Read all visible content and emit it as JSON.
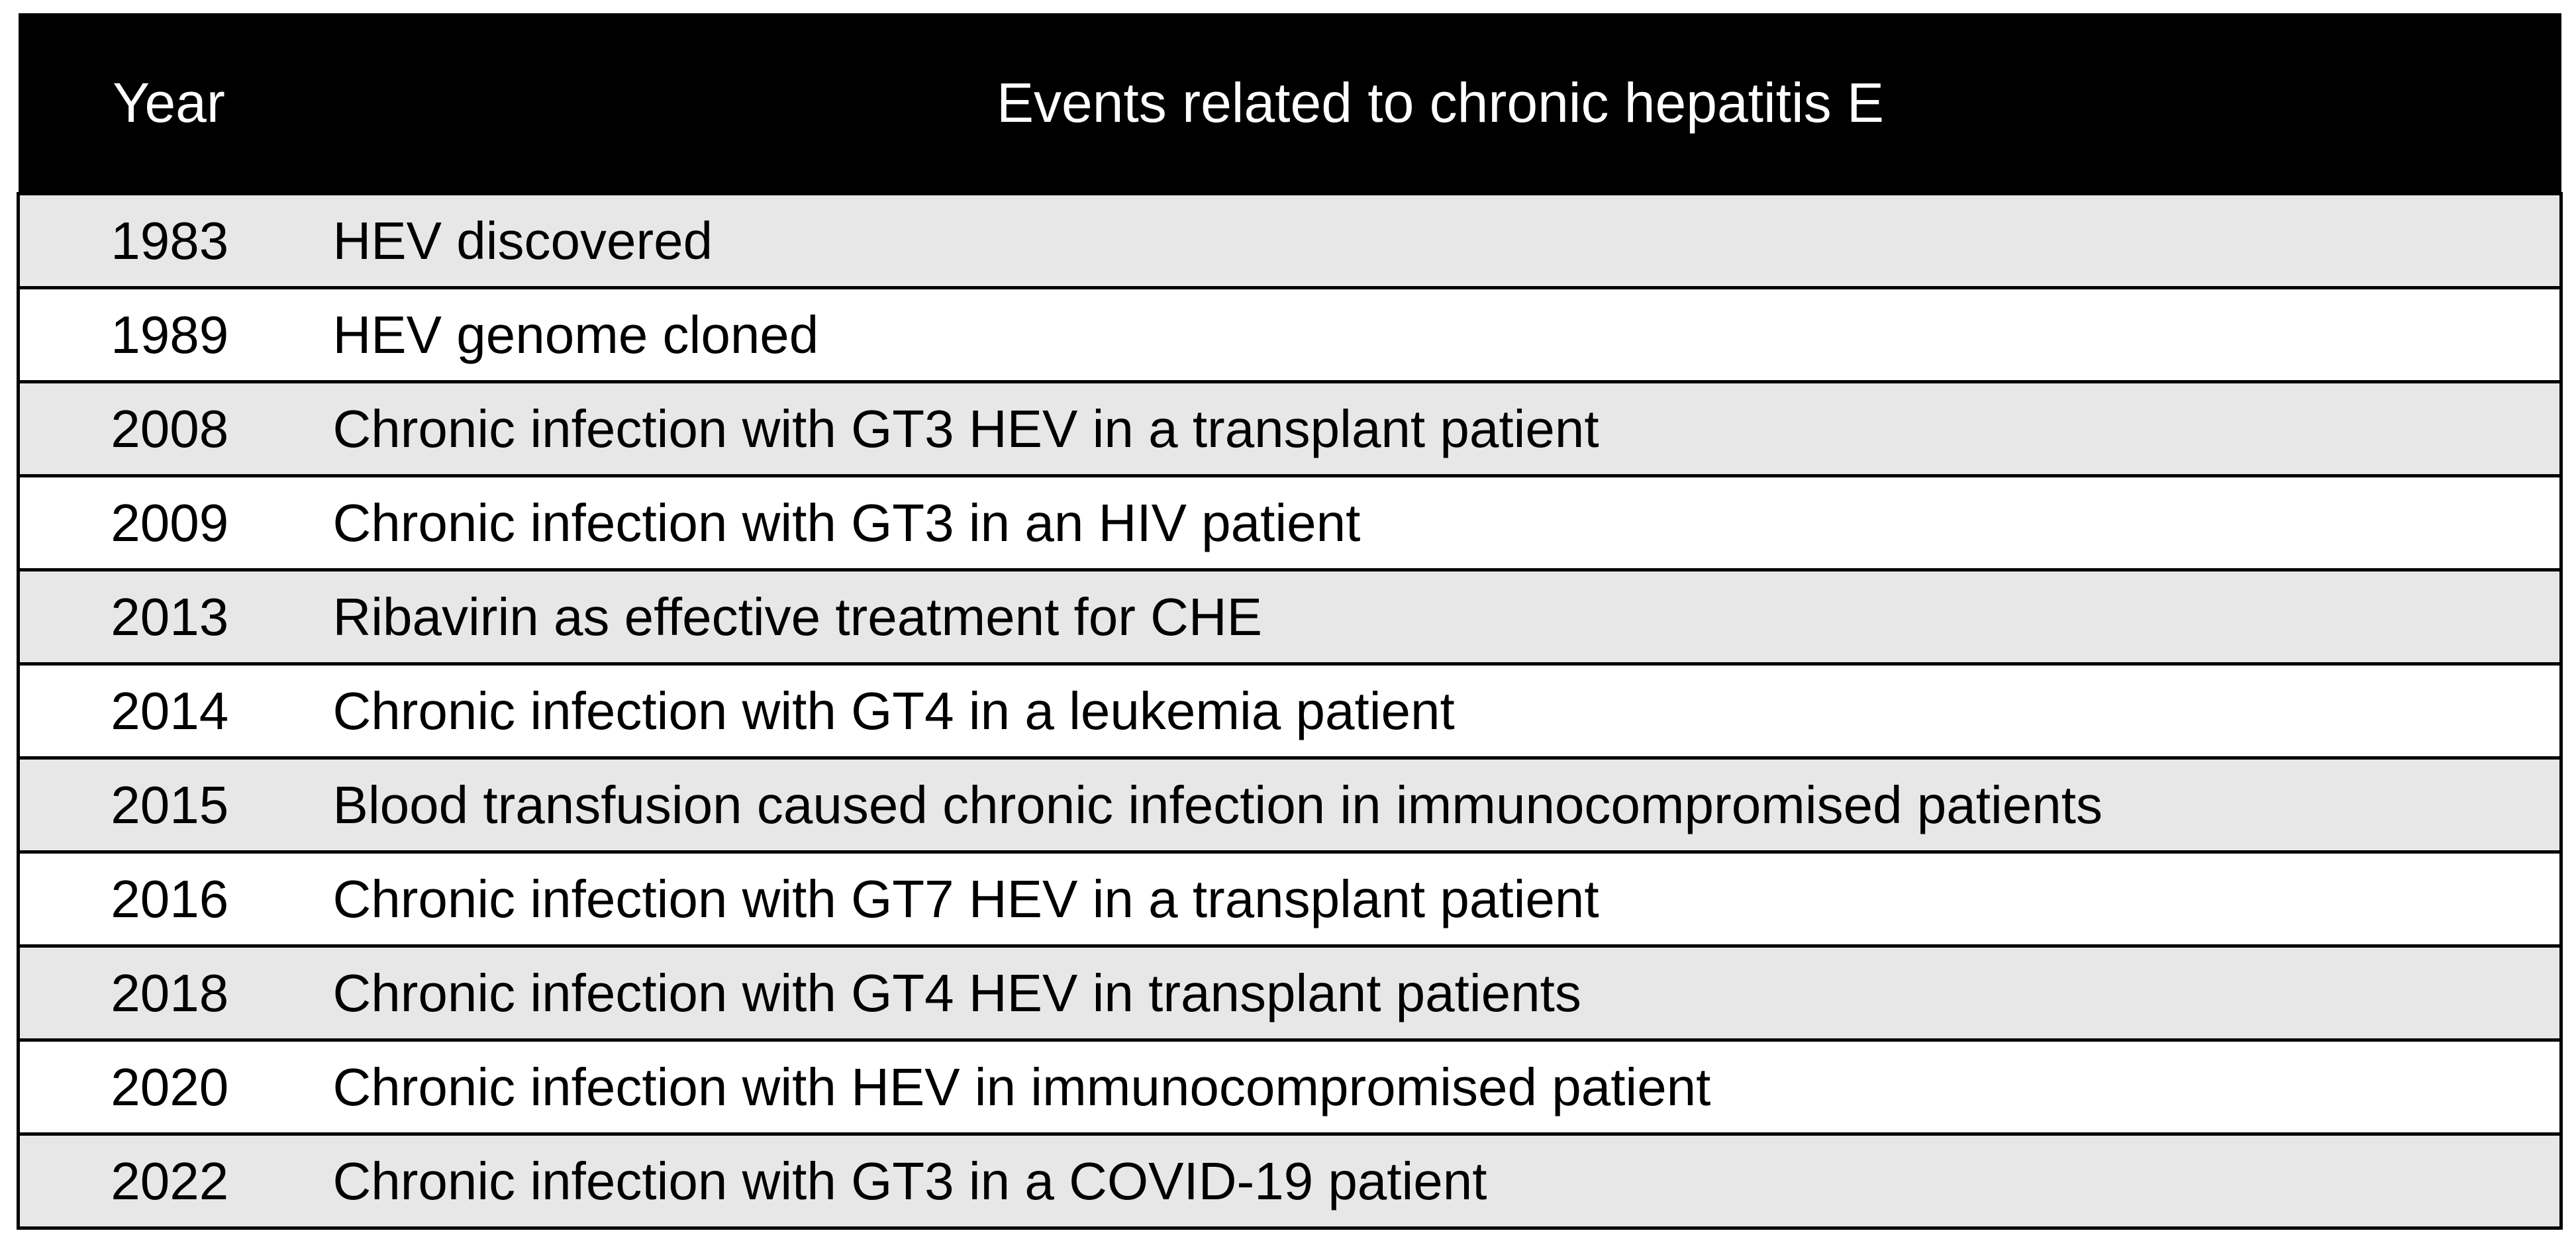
{
  "table": {
    "header": [
      "Year",
      "Events related to chronic hepatitis E"
    ],
    "rows": [
      [
        "1983",
        "HEV discovered"
      ],
      [
        "1989",
        "HEV genome cloned"
      ],
      [
        "2008",
        "Chronic infection with GT3 HEV in a transplant patient"
      ],
      [
        "2009",
        "Chronic infection with GT3 in an HIV patient"
      ],
      [
        "2013",
        "Ribavirin as effective treatment for CHE"
      ],
      [
        "2014",
        "Chronic infection with GT4 in a leukemia patient"
      ],
      [
        "2015",
        "Blood transfusion caused chronic infection in immunocompromised patients"
      ],
      [
        "2016",
        "Chronic infection with GT7 HEV in a transplant patient"
      ],
      [
        "2018",
        "Chronic infection with GT4 HEV in transplant patients"
      ],
      [
        "2020",
        "Chronic infection with HEV in immunocompromised patient"
      ],
      [
        "2022",
        "Chronic infection with GT3 in a COVID-19 patient"
      ]
    ]
  }
}
